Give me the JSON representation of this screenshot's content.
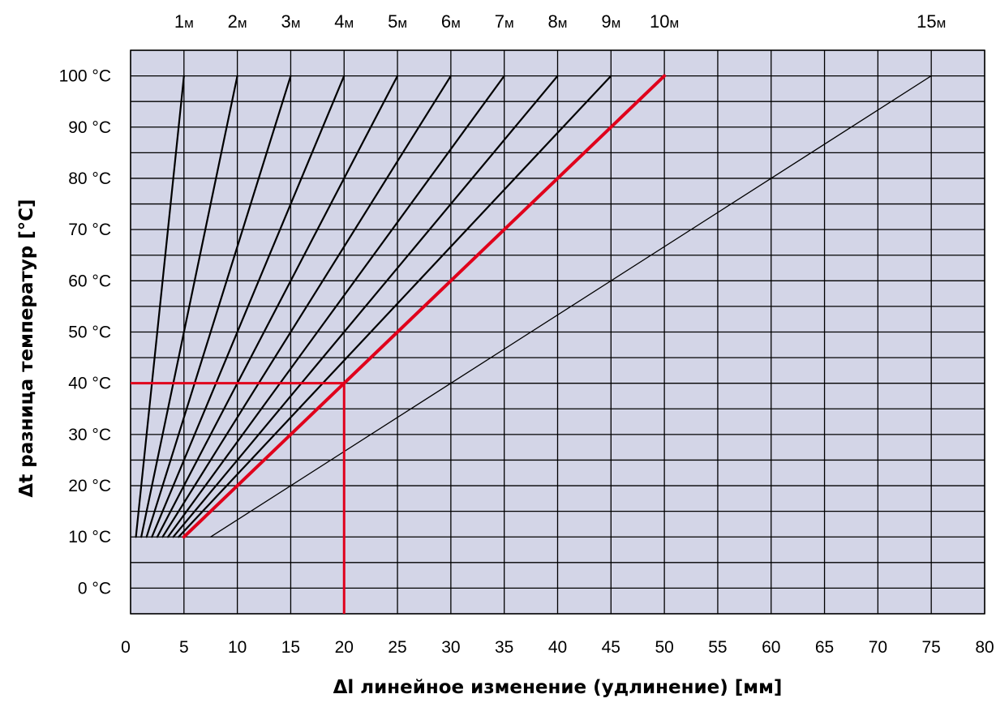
{
  "chart_data": {
    "type": "line",
    "xlabel": "Δl линейное изменение (удлинение) [мм]",
    "ylabel": "Δt  разница температур [°C]",
    "xlim": [
      0,
      80
    ],
    "ylim": [
      -5,
      105
    ],
    "grid": true,
    "x_ticks": [
      "0",
      "5",
      "10",
      "15",
      "20",
      "25",
      "30",
      "35",
      "40",
      "45",
      "50",
      "55",
      "60",
      "65",
      "70",
      "75",
      "80"
    ],
    "y_ticks": [
      "0 °C",
      "10 °C",
      "20 °C",
      "30 °C",
      "40 °C",
      "50 °C",
      "60 °C",
      "70 °C",
      "80 °C",
      "90 °C",
      "100 °C"
    ],
    "series": [
      {
        "name": "1м",
        "unit": "м",
        "x": [
          0.5,
          5
        ],
        "y": [
          10,
          100
        ]
      },
      {
        "name": "2м",
        "unit": "м",
        "x": [
          1,
          10
        ],
        "y": [
          10,
          100
        ]
      },
      {
        "name": "3м",
        "unit": "м",
        "x": [
          1.5,
          15
        ],
        "y": [
          10,
          100
        ]
      },
      {
        "name": "4м",
        "unit": "м",
        "x": [
          2,
          20
        ],
        "y": [
          10,
          100
        ]
      },
      {
        "name": "5м",
        "unit": "м",
        "x": [
          2.5,
          25
        ],
        "y": [
          10,
          100
        ]
      },
      {
        "name": "6м",
        "unit": "м",
        "x": [
          3,
          30
        ],
        "y": [
          10,
          100
        ]
      },
      {
        "name": "7м",
        "unit": "м",
        "x": [
          3.5,
          35
        ],
        "y": [
          10,
          100
        ]
      },
      {
        "name": "8м",
        "unit": "м",
        "x": [
          4,
          40
        ],
        "y": [
          10,
          100
        ]
      },
      {
        "name": "9м",
        "unit": "м",
        "x": [
          4.5,
          45
        ],
        "y": [
          10,
          100
        ]
      },
      {
        "name": "10м",
        "unit": "м",
        "x": [
          5,
          50
        ],
        "y": [
          10,
          100
        ]
      },
      {
        "name": "15м",
        "unit": "м",
        "x": [
          7.5,
          75
        ],
        "y": [
          10,
          100
        ]
      }
    ],
    "highlight": {
      "series": "10м",
      "x": 20,
      "y": 40,
      "x_label": "20",
      "y_label": "40 °C"
    },
    "colors": {
      "plot_background": "#d3d5e7",
      "grid": "#000000",
      "highlight": "#e0001b",
      "text": "#000000"
    }
  }
}
